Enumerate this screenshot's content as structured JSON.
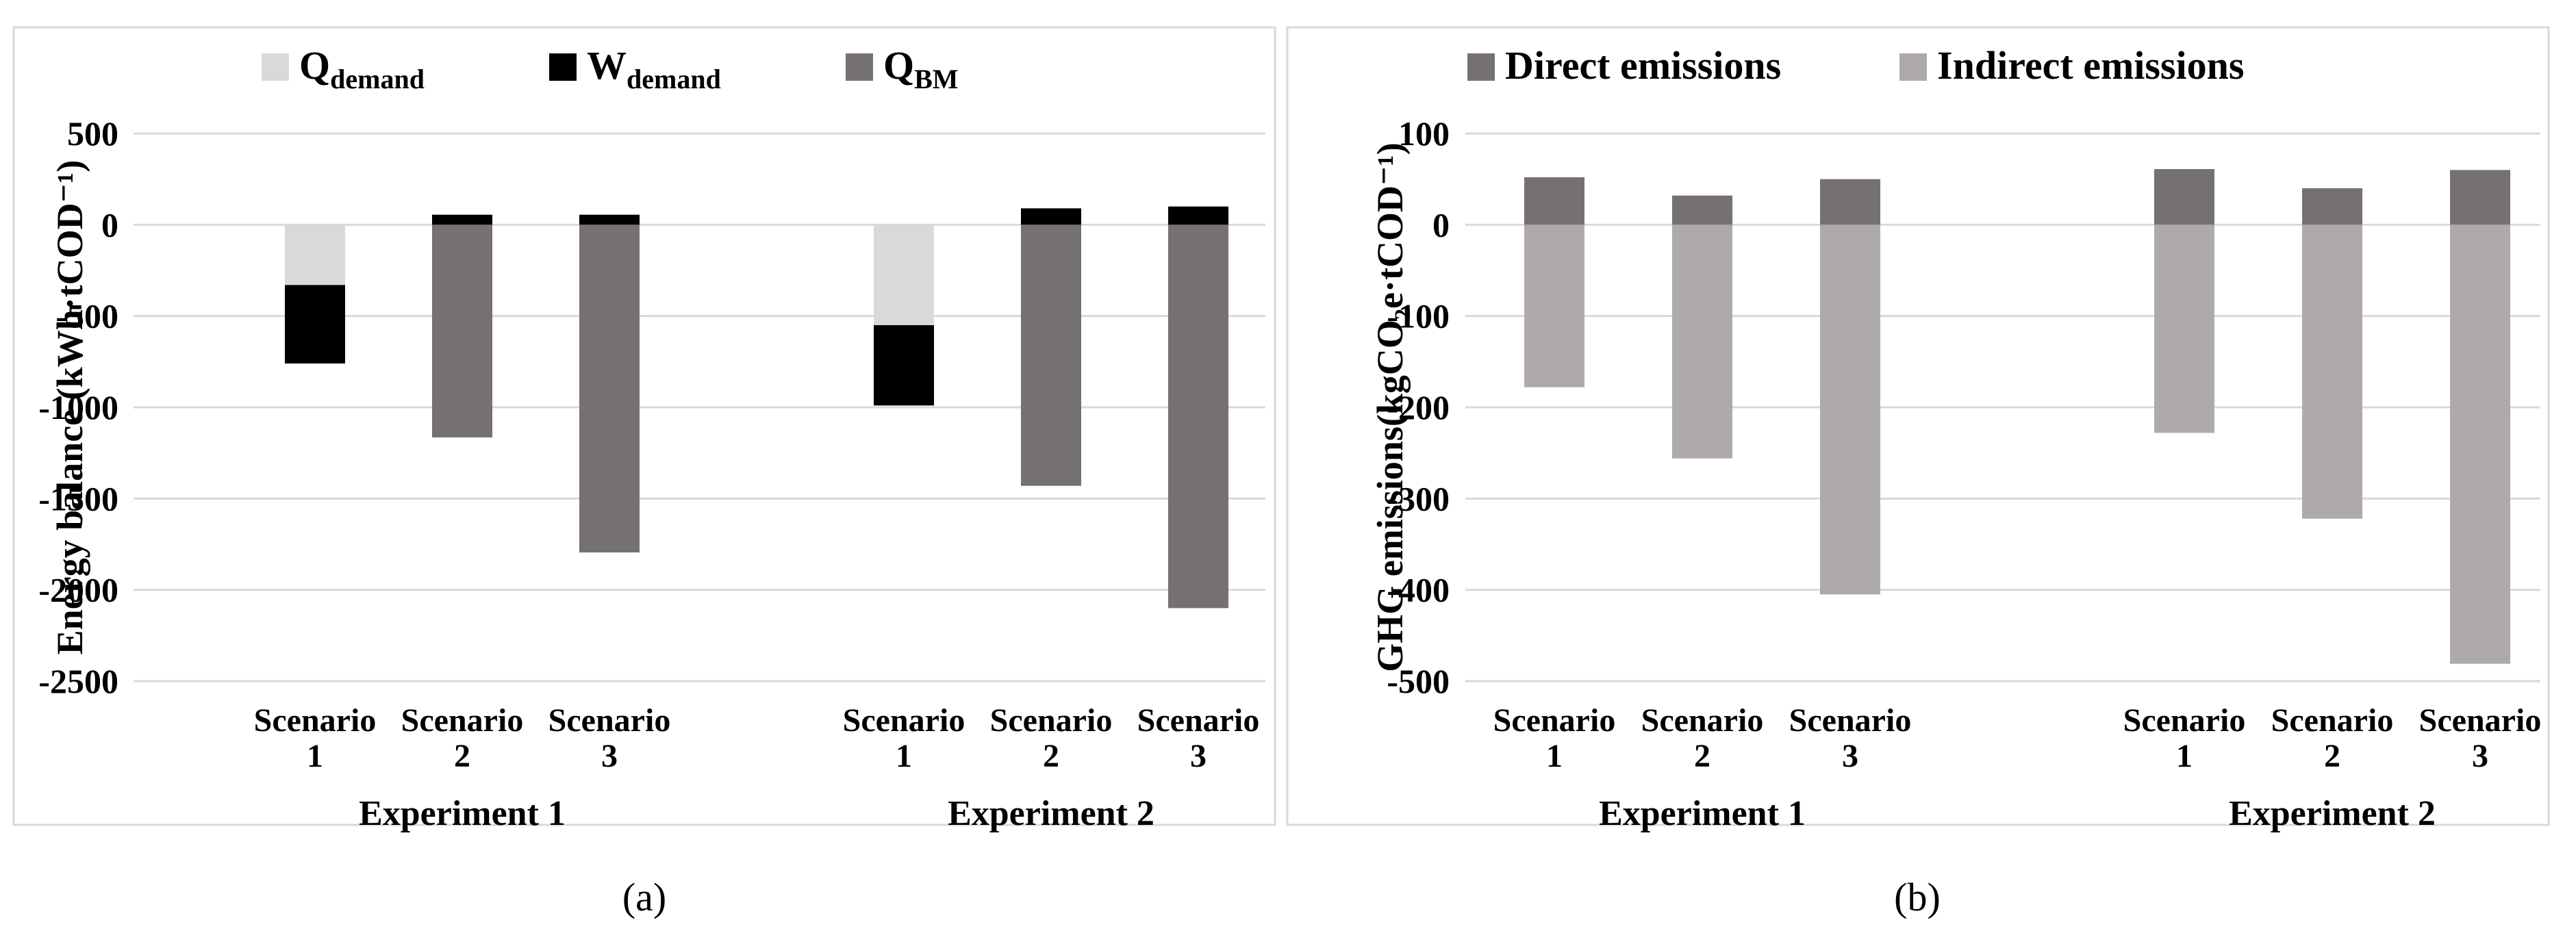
{
  "chart_data": [
    {
      "id": "a",
      "type": "bar",
      "stacked": true,
      "panel_label": "(a)",
      "ylabel": "Energy balance (kWh·tCOD⁻¹)",
      "ylim": [
        -2500,
        500
      ],
      "yticks": [
        500,
        0,
        -500,
        -1000,
        -1500,
        -2000,
        -2500
      ],
      "grid": true,
      "legend_position": "top",
      "groups": [
        {
          "label": "Experiment 1",
          "categories": [
            [
              "Scenario",
              "1"
            ],
            [
              "Scenario",
              "2"
            ],
            [
              "Scenario",
              "3"
            ]
          ]
        },
        {
          "label": "Experiment 2",
          "categories": [
            [
              "Scenario",
              "1"
            ],
            [
              "Scenario",
              "2"
            ],
            [
              "Scenario",
              "3"
            ]
          ]
        }
      ],
      "series": [
        {
          "name": "Q",
          "sub": "demand",
          "color": "#d9d9d9",
          "values": [
            -330,
            0,
            0,
            -550,
            0,
            0
          ]
        },
        {
          "name": "W",
          "sub": "demand",
          "color": "#000000",
          "values": [
            -430,
            55,
            55,
            -440,
            90,
            100
          ]
        },
        {
          "name": "Q",
          "sub": "BM",
          "color": "#767171",
          "values": [
            0,
            -1165,
            -1795,
            0,
            -1430,
            -2100
          ]
        }
      ]
    },
    {
      "id": "b",
      "type": "bar",
      "stacked": true,
      "panel_label": "(b)",
      "ylabel": "GHG emissions(kgCO₂e·tCOD⁻¹)",
      "ylim": [
        -500,
        100
      ],
      "yticks": [
        100,
        0,
        -100,
        -200,
        -300,
        -400,
        -500
      ],
      "grid": true,
      "legend_position": "top",
      "groups": [
        {
          "label": "Experiment 1",
          "categories": [
            [
              "Scenario",
              "1"
            ],
            [
              "Scenario",
              "2"
            ],
            [
              "Scenario",
              "3"
            ]
          ]
        },
        {
          "label": "Experiment 2",
          "categories": [
            [
              "Scenario",
              "1"
            ],
            [
              "Scenario",
              "2"
            ],
            [
              "Scenario",
              "3"
            ]
          ]
        }
      ],
      "series": [
        {
          "name": "Direct emissions",
          "color": "#767171",
          "values": [
            52,
            32,
            50,
            61,
            40,
            60
          ]
        },
        {
          "name": "Indirect emissions",
          "color": "#aeaaaa",
          "values": [
            -178,
            -256,
            -405,
            -228,
            -322,
            -481
          ]
        }
      ]
    }
  ]
}
